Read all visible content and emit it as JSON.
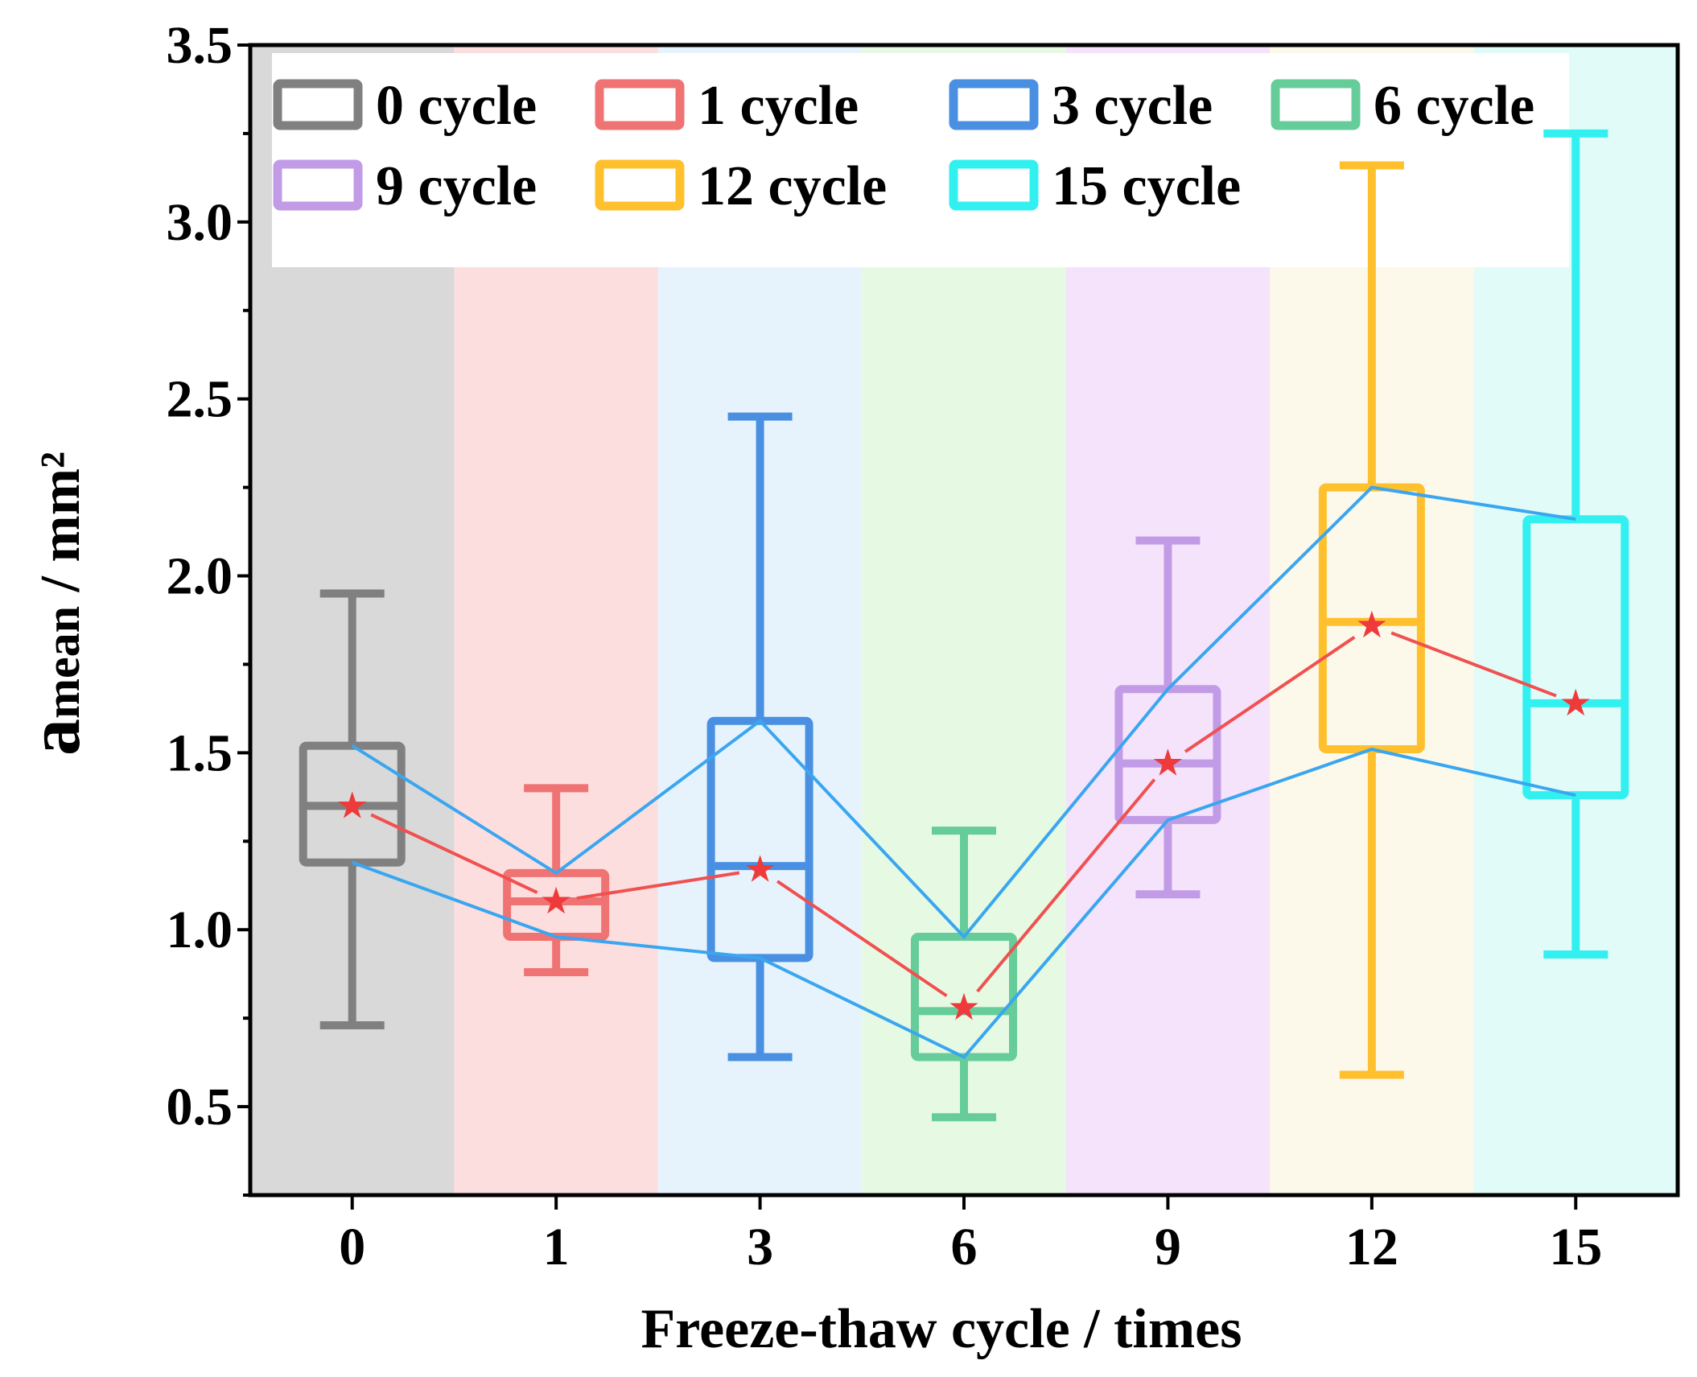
{
  "chart_data": {
    "type": "box",
    "title": "",
    "xlabel": "Freeze-thaw cycle / times",
    "ylabel": {
      "main": "a",
      "sub": "mean",
      "rest": " / mm²"
    },
    "ylim": [
      0.25,
      3.5
    ],
    "yticks": [
      "0.5",
      "1.0",
      "1.5",
      "2.0",
      "2.5",
      "3.0",
      "3.5"
    ],
    "grid": false,
    "legend_position": "top",
    "categories": [
      "0",
      "1",
      "3",
      "6",
      "9",
      "12",
      "15"
    ],
    "series": [
      {
        "name": "0 cycle",
        "color": "#808080",
        "band": "#d9d9d9",
        "whisker_low": 0.73,
        "q1": 1.19,
        "median": 1.35,
        "q3": 1.52,
        "whisker_high": 1.95,
        "mean": 1.35
      },
      {
        "name": "1 cycle",
        "color": "#f07373",
        "band": "#fcdede",
        "whisker_low": 0.88,
        "q1": 0.98,
        "median": 1.08,
        "q3": 1.16,
        "whisker_high": 1.4,
        "mean": 1.08
      },
      {
        "name": "3 cycle",
        "color": "#4a90e2",
        "band": "#e6f3fd",
        "whisker_low": 0.64,
        "q1": 0.92,
        "median": 1.18,
        "q3": 1.59,
        "whisker_high": 2.45,
        "mean": 1.17
      },
      {
        "name": "6 cycle",
        "color": "#66cc99",
        "band": "#e6fae3",
        "whisker_low": 0.47,
        "q1": 0.64,
        "median": 0.77,
        "q3": 0.98,
        "whisker_high": 1.28,
        "mean": 0.78
      },
      {
        "name": "9 cycle",
        "color": "#c29be6",
        "band": "#f5e3fb",
        "whisker_low": 1.1,
        "q1": 1.31,
        "median": 1.47,
        "q3": 1.68,
        "whisker_high": 2.1,
        "mean": 1.47
      },
      {
        "name": "12 cycle",
        "color": "#ffc02e",
        "band": "#fdf9ea",
        "whisker_low": 0.59,
        "q1": 1.51,
        "median": 1.87,
        "q3": 2.25,
        "whisker_high": 3.16,
        "mean": 1.86
      },
      {
        "name": "15 cycle",
        "color": "#33f0f0",
        "band": "#e0fbf8",
        "whisker_low": 0.93,
        "q1": 1.38,
        "median": 1.64,
        "q3": 2.16,
        "whisker_high": 3.25,
        "mean": 1.64
      }
    ],
    "mean_line_color": "#f05050",
    "quartile_line_color": "#3aa6f0",
    "mean_marker": "★"
  }
}
